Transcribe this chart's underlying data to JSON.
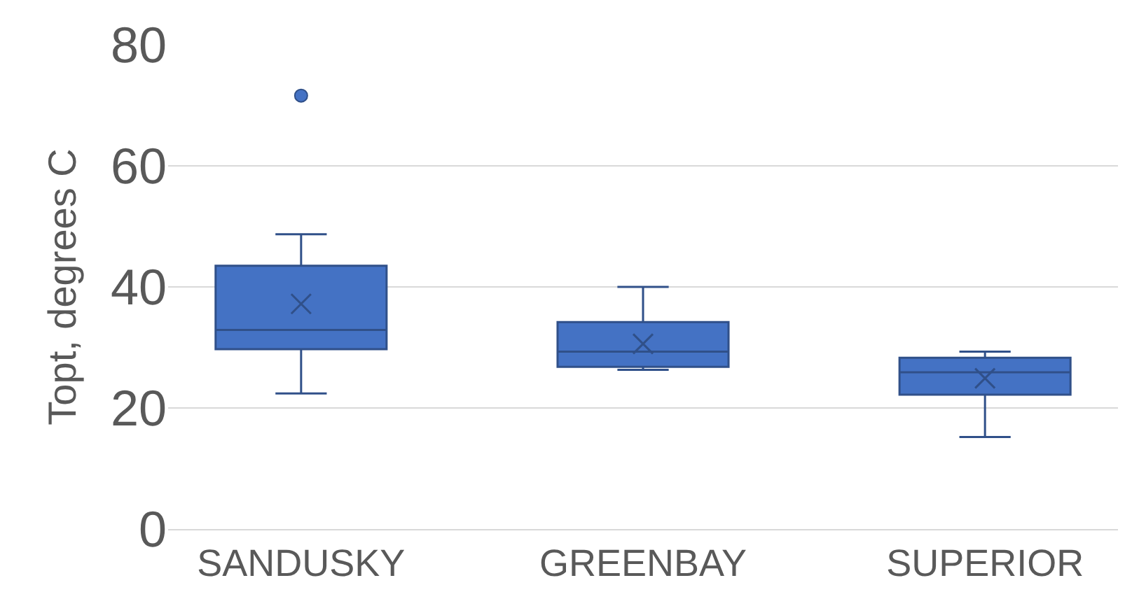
{
  "chart_data": {
    "type": "box",
    "ylabel": "Topt, degrees C",
    "categories": [
      "SANDUSKY",
      "GREENBAY",
      "SUPERIOR"
    ],
    "color": "#4472c4",
    "boxes": [
      {
        "low": 22.4,
        "q1": 29.7,
        "median": 32.9,
        "q3": 43.5,
        "high": 48.7,
        "mean": 37.2,
        "outliers": [
          71.6
        ]
      },
      {
        "low": 26.3,
        "q1": 26.8,
        "median": 29.3,
        "q3": 34.2,
        "high": 40,
        "mean": 30.6
      },
      {
        "low": 15.2,
        "q1": 22.2,
        "median": 25.9,
        "q3": 28.3,
        "high": 29.3,
        "mean": 24.9
      }
    ],
    "ylim": [
      0,
      80
    ],
    "yticks": [
      0,
      20,
      40,
      60,
      80
    ],
    "grid": "y"
  }
}
